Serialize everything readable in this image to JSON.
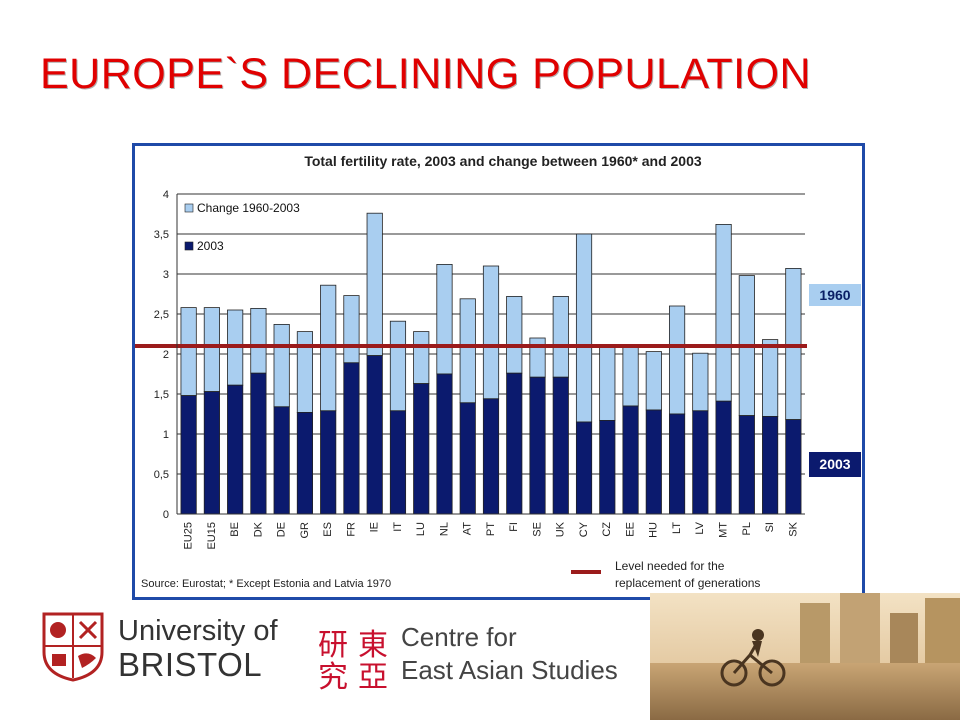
{
  "slide": {
    "title": "EUROPE`S DECLINING POPULATION"
  },
  "chart_data": {
    "type": "bar",
    "stacked": true,
    "title": "Total fertility rate, 2003 and change between 1960* and 2003",
    "categories": [
      "EU25",
      "EU15",
      "BE",
      "DK",
      "DE",
      "GR",
      "ES",
      "FR",
      "IE",
      "IT",
      "LU",
      "NL",
      "AT",
      "PT",
      "FI",
      "SE",
      "UK",
      "CY",
      "CZ",
      "EE",
      "HU",
      "LT",
      "LV",
      "MT",
      "PL",
      "SI",
      "SK"
    ],
    "series": [
      {
        "name": "2003",
        "color": "#0b1a6e",
        "values": [
          1.48,
          1.53,
          1.61,
          1.76,
          1.34,
          1.27,
          1.29,
          1.89,
          1.98,
          1.29,
          1.63,
          1.75,
          1.39,
          1.44,
          1.76,
          1.71,
          1.71,
          1.15,
          1.17,
          1.35,
          1.3,
          1.25,
          1.29,
          1.41,
          1.23,
          1.22,
          1.18
        ]
      },
      {
        "name": "Change 1960-2003",
        "color": "#a9cef0",
        "values": [
          1.1,
          1.05,
          0.94,
          0.81,
          1.03,
          1.01,
          1.57,
          0.84,
          1.78,
          1.12,
          0.65,
          1.37,
          1.3,
          1.66,
          0.96,
          0.49,
          1.01,
          2.35,
          0.94,
          0.76,
          0.73,
          1.35,
          0.72,
          2.21,
          1.75,
          0.96,
          1.89
        ]
      }
    ],
    "totals_1960": [
      2.58,
      2.58,
      2.55,
      2.57,
      2.37,
      2.28,
      2.86,
      2.73,
      3.76,
      2.41,
      2.28,
      3.12,
      2.69,
      3.1,
      2.72,
      2.2,
      2.72,
      3.5,
      2.11,
      2.11,
      2.03,
      2.6,
      2.01,
      3.62,
      2.98,
      2.18,
      3.07
    ],
    "ylim": [
      0,
      4
    ],
    "yticks": [
      "0",
      "0,5",
      "1",
      "1,5",
      "2",
      "2,5",
      "3",
      "3,5",
      "4"
    ],
    "grid": true,
    "legend": {
      "position": "top-left",
      "entries": [
        "Change 1960-2003",
        "2003"
      ]
    },
    "reference_line": {
      "value": 2.1,
      "color": "#9b1b1b",
      "label": "Level needed for the replacement of generations"
    },
    "source": "Source: Eurostat; * Except Estonia and Latvia 1970",
    "markers": {
      "top_label": "1960",
      "bottom_label": "2003"
    }
  },
  "logos": {
    "bristol_line1": "University of",
    "bristol_line2": "BRISTOL",
    "ceas_line1": "Centre for",
    "ceas_line2": "East Asian Studies",
    "ceas_glyphs": [
      "研",
      "東",
      "究",
      "亞"
    ]
  }
}
